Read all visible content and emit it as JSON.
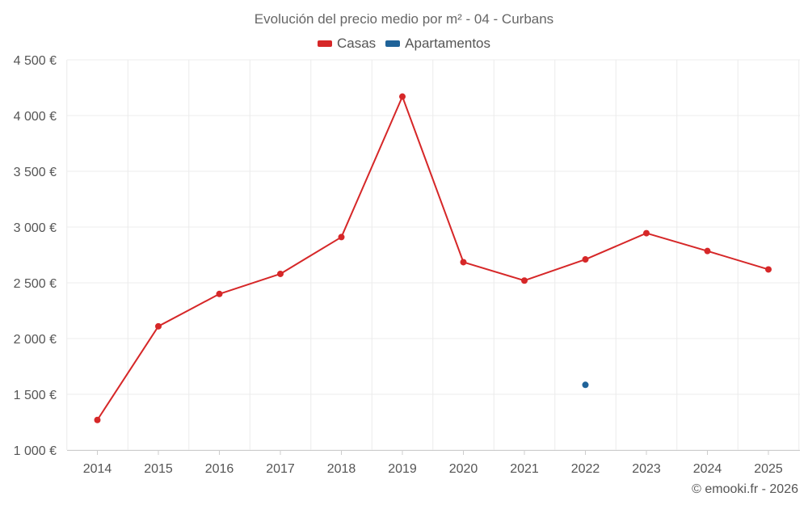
{
  "chart_data": {
    "type": "line",
    "title": "Evolución del precio medio por m² - 04 - Curbans",
    "x": [
      "2014",
      "2015",
      "2016",
      "2017",
      "2018",
      "2019",
      "2020",
      "2021",
      "2022",
      "2023",
      "2024",
      "2025"
    ],
    "series": [
      {
        "name": "Casas",
        "color": "#d62728",
        "values": [
          1270,
          2110,
          2400,
          2580,
          2910,
          4170,
          2685,
          2520,
          2710,
          2945,
          2785,
          2620
        ]
      },
      {
        "name": "Apartamentos",
        "color": "#1f6399",
        "values": [
          null,
          null,
          null,
          null,
          null,
          null,
          null,
          null,
          1585,
          null,
          null,
          null
        ]
      }
    ],
    "ylim": [
      1000,
      4500
    ],
    "yticks": [
      1000,
      1500,
      2000,
      2500,
      3000,
      3500,
      4000,
      4500
    ],
    "ytick_labels": [
      "1 000 €",
      "1 500 €",
      "2 000 €",
      "2 500 €",
      "3 000 €",
      "3 500 €",
      "4 000 €",
      "4 500 €"
    ],
    "grid": true,
    "legend_position": "top-center"
  },
  "credit": "© emooki.fr - 2026"
}
